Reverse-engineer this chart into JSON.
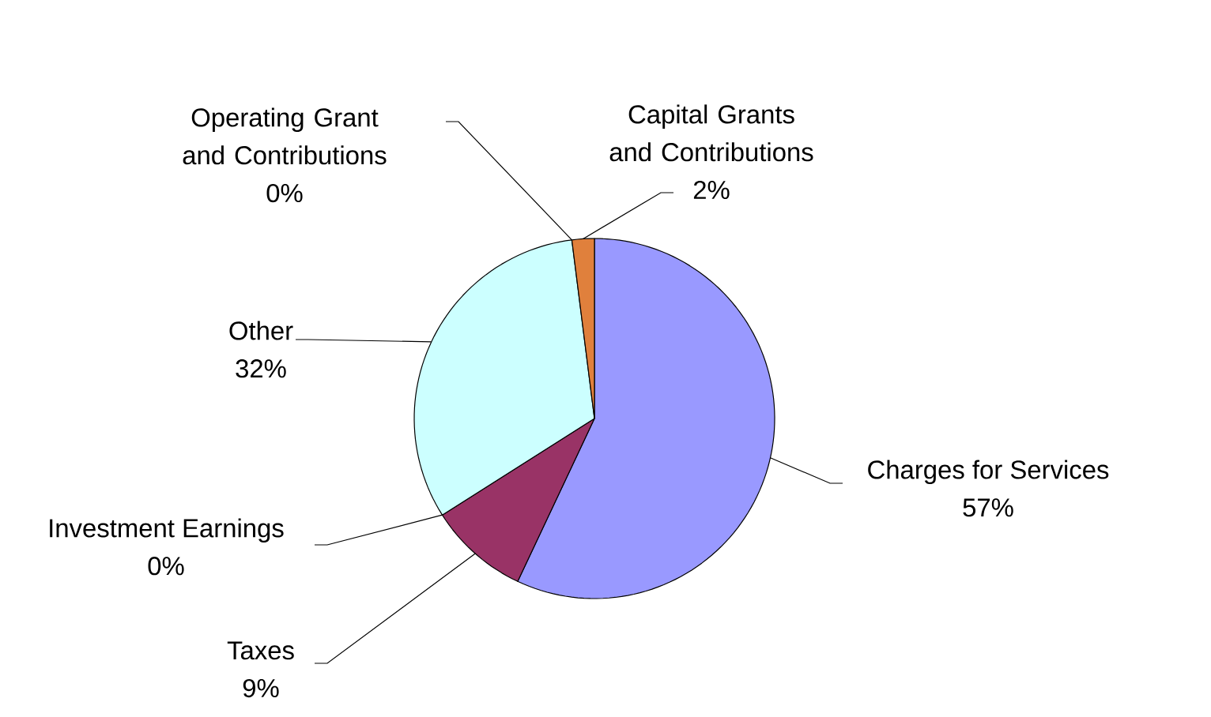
{
  "chart_data": {
    "type": "pie",
    "categories": [
      "Charges for Services",
      "Taxes",
      "Investment Earnings",
      "Other",
      "Operating Grant and Contributions",
      "Capital Grants and Contributions"
    ],
    "values": [
      57,
      9,
      0,
      32,
      0,
      2
    ],
    "value_labels": [
      "57%",
      "9%",
      "0%",
      "32%",
      "0%",
      "2%"
    ],
    "colors": [
      "#9999ff",
      "#993366",
      "#ffffcc",
      "#ccffff",
      "#660066",
      "#e0803c"
    ]
  }
}
